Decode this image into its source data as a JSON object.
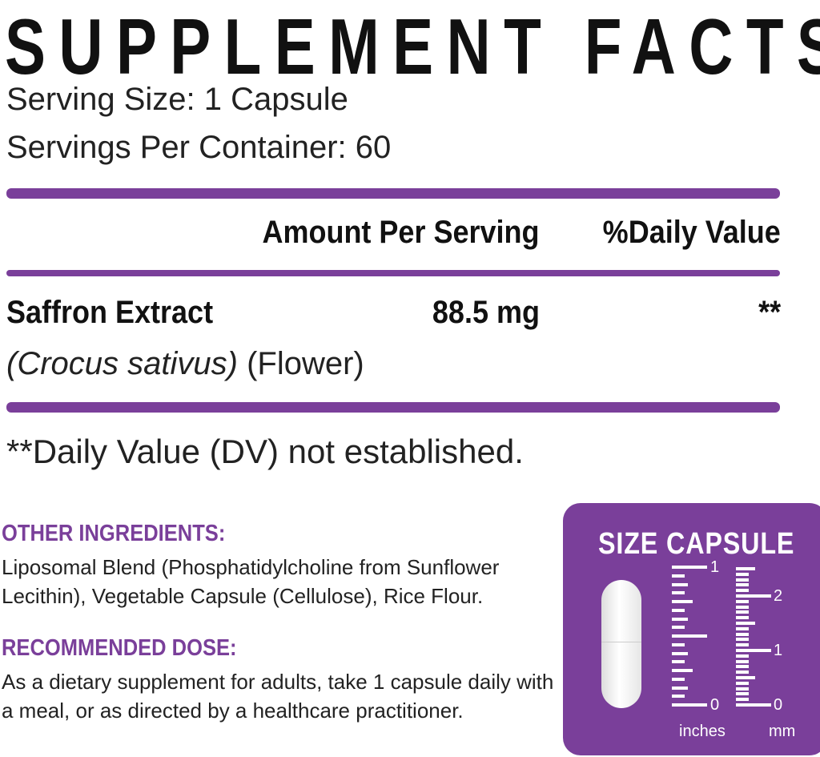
{
  "title": "SUPPLEMENT FACTS",
  "serving_size": "Serving Size: 1 Capsule",
  "servings_per_container": "Servings Per Container: 60",
  "header": {
    "amount": "Amount Per Serving",
    "dv": "%Daily Value"
  },
  "rows": [
    {
      "name": "Saffron Extract",
      "amount": "88.5 mg",
      "dv": "**",
      "latin": "(Crocus sativus)",
      "part": "(Flower)"
    }
  ],
  "footnote": "**Daily Value (DV) not established.",
  "other_ingredients": {
    "title": "OTHER INGREDIENTS:",
    "text": "Liposomal Blend (Phosphatidylcholine from Sunflower Lecithin), Vegetable Capsule (Cellulose), Rice Flour."
  },
  "recommended_dose": {
    "title": "RECOMMENDED DOSE:",
    "text": "As a dietary supplement for adults, take 1 capsule daily with a meal, or as directed by a healthcare practitioner."
  },
  "size_capsule": {
    "title": "SIZE CAPSULE",
    "inch_labels": [
      "1",
      "0"
    ],
    "mm_labels": [
      "2",
      "1",
      "0"
    ],
    "inch_unit": "inches",
    "mm_unit": "mm"
  },
  "colors": {
    "accent": "#7a3f9a"
  }
}
